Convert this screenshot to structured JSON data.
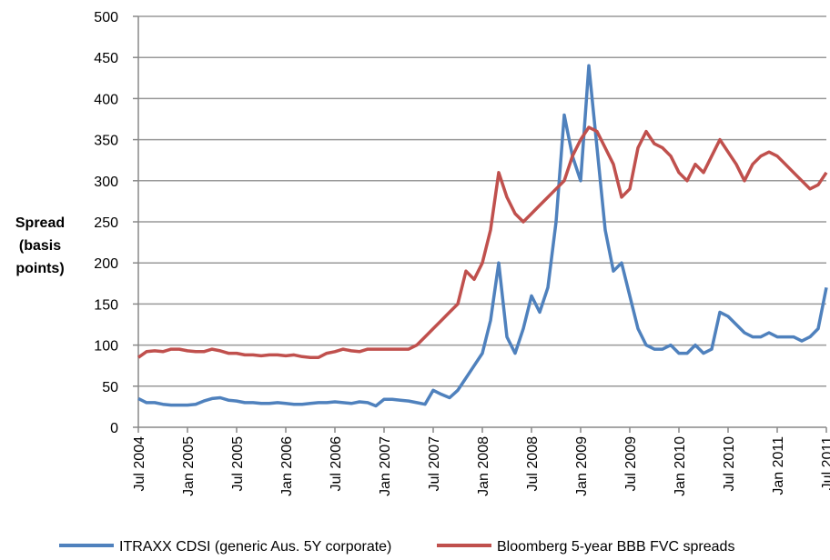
{
  "chart_data": {
    "type": "line",
    "y_label": [
      "Spread",
      "(basis",
      "points)"
    ],
    "categories": [
      "Jul 2004",
      null,
      null,
      null,
      null,
      null,
      "Jan 2005",
      null,
      null,
      null,
      null,
      null,
      "Jul 2005",
      null,
      null,
      null,
      null,
      null,
      "Jan 2006",
      null,
      null,
      null,
      null,
      null,
      "Jul 2006",
      null,
      null,
      null,
      null,
      null,
      "Jan 2007",
      null,
      null,
      null,
      null,
      null,
      "Jul 2007",
      null,
      null,
      null,
      null,
      null,
      "Jan 2008",
      null,
      null,
      null,
      null,
      null,
      "Jul 2008",
      null,
      null,
      null,
      null,
      null,
      "Jan 2009",
      null,
      null,
      null,
      null,
      null,
      "Jul 2009",
      null,
      null,
      null,
      null,
      null,
      "Jan 2010",
      null,
      null,
      null,
      null,
      null,
      "Jul 2010",
      null,
      null,
      null,
      null,
      null,
      "Jan 2011",
      null,
      null,
      null,
      null,
      null,
      "Jul 2011"
    ],
    "series": [
      {
        "name": "ITRAXX CDSI (generic Aus. 5Y corporate)",
        "color": "#4f81bd",
        "values": [
          35,
          30,
          30,
          28,
          27,
          27,
          27,
          28,
          32,
          35,
          36,
          33,
          32,
          30,
          30,
          29,
          29,
          30,
          29,
          28,
          28,
          29,
          30,
          30,
          31,
          30,
          29,
          31,
          30,
          26,
          34,
          34,
          33,
          32,
          30,
          28,
          45,
          40,
          36,
          45,
          60,
          75,
          90,
          130,
          200,
          110,
          90,
          120,
          160,
          140,
          170,
          250,
          380,
          330,
          300,
          440,
          340,
          240,
          190,
          200,
          160,
          120,
          100,
          95,
          95,
          100,
          90,
          90,
          100,
          90,
          95,
          140,
          135,
          125,
          115,
          110,
          110,
          115,
          110,
          110,
          110,
          105,
          110,
          120,
          170
        ]
      },
      {
        "name": "Bloomberg 5-year BBB FVC spreads",
        "color": "#c0504d",
        "values": [
          85,
          92,
          93,
          92,
          95,
          95,
          93,
          92,
          92,
          95,
          93,
          90,
          90,
          88,
          88,
          87,
          88,
          88,
          87,
          88,
          86,
          85,
          85,
          90,
          92,
          95,
          93,
          92,
          95,
          95,
          95,
          95,
          95,
          95,
          100,
          110,
          120,
          130,
          140,
          150,
          190,
          180,
          200,
          240,
          310,
          280,
          260,
          250,
          260,
          270,
          280,
          290,
          300,
          330,
          350,
          365,
          360,
          340,
          320,
          280,
          290,
          340,
          360,
          345,
          340,
          330,
          310,
          300,
          320,
          310,
          330,
          350,
          335,
          320,
          300,
          320,
          330,
          335,
          330,
          320,
          310,
          300,
          290,
          295,
          310
        ]
      }
    ],
    "ylim": [
      0,
      500
    ],
    "yticks": [
      0,
      50,
      100,
      150,
      200,
      250,
      300,
      350,
      400,
      450,
      500
    ],
    "grid": true
  }
}
